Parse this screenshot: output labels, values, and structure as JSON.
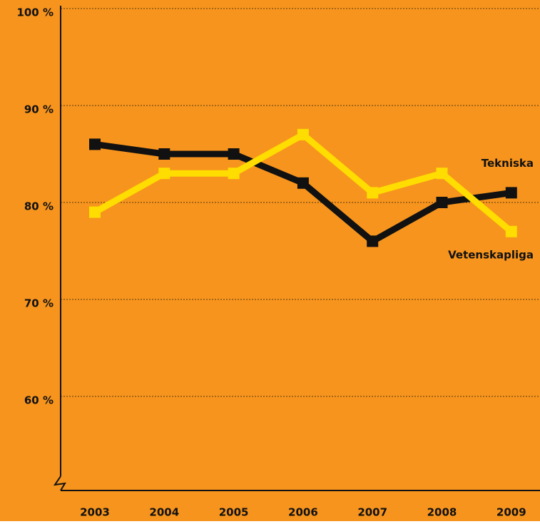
{
  "chart_data": {
    "type": "line",
    "x": [
      "2003",
      "2004",
      "2005",
      "2006",
      "2007",
      "2008",
      "2009"
    ],
    "series": [
      {
        "name": "Tekniska",
        "color": "#111111",
        "values": [
          86,
          85,
          85,
          82,
          76,
          80,
          81
        ]
      },
      {
        "name": "Vetenskapliga",
        "color": "#ffdd00",
        "values": [
          79,
          83,
          83,
          87,
          81,
          83,
          77
        ]
      }
    ],
    "ylim": [
      50,
      100
    ],
    "yticks": [
      {
        "value": 60,
        "label": "60 %"
      },
      {
        "value": 70,
        "label": "70 %"
      },
      {
        "value": 80,
        "label": "80 %"
      },
      {
        "value": 90,
        "label": "90 %"
      },
      {
        "value": 100,
        "label": "100 %"
      }
    ],
    "grid": true,
    "background": "#f7941d"
  }
}
